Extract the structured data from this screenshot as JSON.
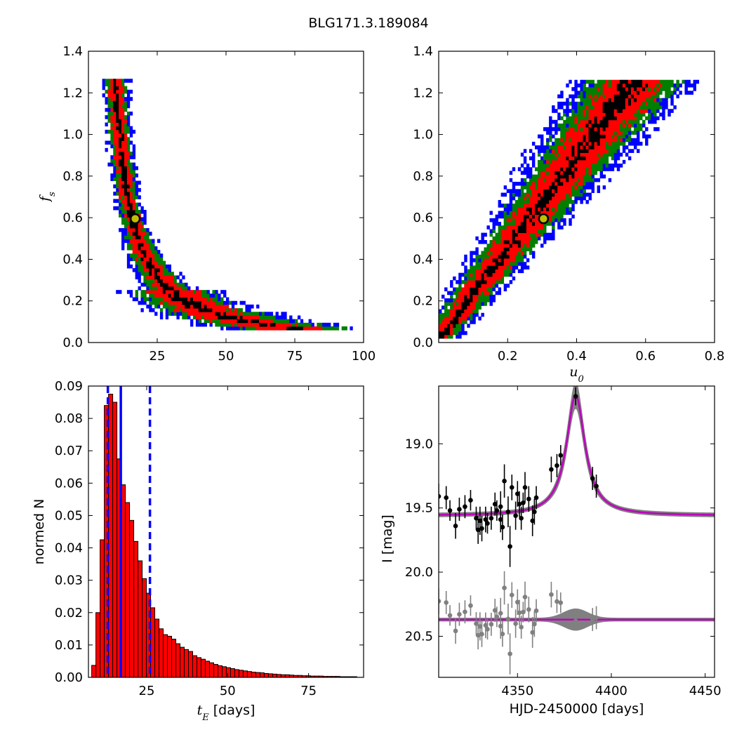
{
  "figure": {
    "title": "BLG171.3.189084"
  },
  "chart_data": [
    {
      "id": "p1",
      "type": "heatmap",
      "xlim": [
        0,
        100
      ],
      "ylim": [
        0,
        1.4
      ],
      "xticks": [
        25,
        50,
        75,
        100
      ],
      "xticklabels": [
        "25",
        "50",
        "75",
        "100"
      ],
      "yticks": [
        0.0,
        0.2,
        0.4,
        0.6,
        0.8,
        1.0,
        1.2,
        1.4
      ],
      "yticklabels": [
        "0.0",
        "0.2",
        "0.4",
        "0.6",
        "0.8",
        "1.0",
        "1.2",
        "1.4"
      ],
      "xlabel": "",
      "ylabel": "f_s",
      "ylabel_main": "f",
      "ylabel_sub": "s",
      "levels": [
        {
          "color": "#0000ff",
          "description": "outer"
        },
        {
          "color": "#007f00",
          "description": "middle"
        },
        {
          "color": "#ff0000",
          "description": "inner"
        },
        {
          "color": "#000000",
          "description": "core"
        }
      ],
      "best_fit": {
        "x": 17,
        "y": 0.595,
        "color": "#bfbf00"
      }
    },
    {
      "id": "p2",
      "type": "heatmap",
      "xlim": [
        0,
        0.8
      ],
      "ylim": [
        0,
        1.4
      ],
      "xticks": [
        0.2,
        0.4,
        0.6,
        0.8
      ],
      "xticklabels": [
        "0.2",
        "0.4",
        "0.6",
        "0.8"
      ],
      "yticks": [
        0.0,
        0.2,
        0.4,
        0.6,
        0.8,
        1.0,
        1.2,
        1.4
      ],
      "yticklabels": [
        "0.0",
        "0.2",
        "0.4",
        "0.6",
        "0.8",
        "1.0",
        "1.2",
        "1.4"
      ],
      "xlabel": "u_0",
      "xlabel_main": "u",
      "xlabel_sub": "0",
      "ylabel": "",
      "best_fit": {
        "x": 0.304,
        "y": 0.595,
        "color": "#bfbf00"
      }
    },
    {
      "id": "p3",
      "type": "bar",
      "xlim": [
        7,
        92
      ],
      "ylim": [
        0,
        0.09
      ],
      "xticks": [
        25,
        50,
        75
      ],
      "xticklabels": [
        "25",
        "50",
        "75"
      ],
      "yticks": [
        0.0,
        0.01,
        0.02,
        0.03,
        0.04,
        0.05,
        0.06,
        0.07,
        0.08,
        0.09
      ],
      "yticklabels": [
        "0.00",
        "0.01",
        "0.02",
        "0.03",
        "0.04",
        "0.05",
        "0.06",
        "0.07",
        "0.08",
        "0.09"
      ],
      "xlabel_main": "t",
      "xlabel_sub": "E",
      "xlabel_rest": " [days]",
      "ylabel": "normed N",
      "bin_width": 1.3,
      "bin_start": 8,
      "values": [
        0.0037,
        0.02,
        0.0425,
        0.084,
        0.0875,
        0.085,
        0.0675,
        0.0595,
        0.054,
        0.0485,
        0.042,
        0.036,
        0.0305,
        0.026,
        0.0215,
        0.018,
        0.015,
        0.0132,
        0.0127,
        0.0118,
        0.0104,
        0.0093,
        0.0086,
        0.008,
        0.0067,
        0.0061,
        0.0056,
        0.005,
        0.0045,
        0.004,
        0.0036,
        0.0033,
        0.003,
        0.0027,
        0.0024,
        0.0022,
        0.002,
        0.0018,
        0.0016,
        0.0015,
        0.0014,
        0.0012,
        0.0011,
        0.001,
        0.0009,
        0.0008,
        0.0008,
        0.0007,
        0.0006,
        0.0006,
        0.0005,
        0.0005,
        0.0004,
        0.0004,
        0.0004,
        0.0003,
        0.0003,
        0.0003,
        0.0003,
        0.0002,
        0.0002,
        0.0002,
        0.0002
      ],
      "bar_color": "#ff0000",
      "median": 17,
      "lower": 13,
      "upper": 26,
      "line_color": "#0000ff"
    },
    {
      "id": "p4",
      "type": "scatter",
      "xlim": [
        4308,
        4455
      ],
      "ylim": [
        20.82,
        18.55
      ],
      "xticks": [
        4350,
        4400,
        4450
      ],
      "xticklabels": [
        "4350",
        "4400",
        "4450"
      ],
      "yticks": [
        19.0,
        19.5,
        20.0,
        20.5
      ],
      "yticklabels": [
        "19.0",
        "19.5",
        "20.0",
        "20.5"
      ],
      "xlabel": "HJD-2450000 [days]",
      "ylabel": "I [mag]",
      "model": {
        "t0": 4381,
        "tau": 6.0,
        "base": 19.56,
        "peak": 18.62,
        "color": "#bf00bf",
        "band_color": "#808080"
      },
      "residual_offset": 20.37,
      "points": [
        {
          "t": 4308,
          "m": 19.41,
          "e": 0.1
        },
        {
          "t": 4312,
          "m": 19.42,
          "e": 0.09
        },
        {
          "t": 4314,
          "m": 19.52,
          "e": 0.08
        },
        {
          "t": 4317,
          "m": 19.64,
          "e": 0.1
        },
        {
          "t": 4319,
          "m": 19.51,
          "e": 0.09
        },
        {
          "t": 4322,
          "m": 19.49,
          "e": 0.09
        },
        {
          "t": 4325,
          "m": 19.44,
          "e": 0.08
        },
        {
          "t": 4328,
          "m": 19.58,
          "e": 0.09
        },
        {
          "t": 4329,
          "m": 19.67,
          "e": 0.11
        },
        {
          "t": 4330,
          "m": 19.6,
          "e": 0.11
        },
        {
          "t": 4331,
          "m": 19.66,
          "e": 0.1
        },
        {
          "t": 4333,
          "m": 19.59,
          "e": 0.1
        },
        {
          "t": 4334,
          "m": 19.62,
          "e": 0.08
        },
        {
          "t": 4336,
          "m": 19.58,
          "e": 0.09
        },
        {
          "t": 4338,
          "m": 19.47,
          "e": 0.09
        },
        {
          "t": 4339,
          "m": 19.52,
          "e": 0.08
        },
        {
          "t": 4341,
          "m": 19.49,
          "e": 0.12
        },
        {
          "t": 4341,
          "m": 19.59,
          "e": 0.1
        },
        {
          "t": 4342,
          "m": 19.65,
          "e": 0.1
        },
        {
          "t": 4343,
          "m": 19.29,
          "e": 0.13
        },
        {
          "t": 4345,
          "m": 19.53,
          "e": 0.12
        },
        {
          "t": 4346,
          "m": 19.8,
          "e": 0.16
        },
        {
          "t": 4347,
          "m": 19.34,
          "e": 0.1
        },
        {
          "t": 4349,
          "m": 19.56,
          "e": 0.11
        },
        {
          "t": 4350,
          "m": 19.39,
          "e": 0.1
        },
        {
          "t": 4351,
          "m": 19.47,
          "e": 0.1
        },
        {
          "t": 4352,
          "m": 19.58,
          "e": 0.09
        },
        {
          "t": 4353,
          "m": 19.46,
          "e": 0.08
        },
        {
          "t": 4354,
          "m": 19.34,
          "e": 0.12
        },
        {
          "t": 4356,
          "m": 19.43,
          "e": 0.1
        },
        {
          "t": 4358,
          "m": 19.6,
          "e": 0.12
        },
        {
          "t": 4359,
          "m": 19.53,
          "e": 0.1
        },
        {
          "t": 4360,
          "m": 19.42,
          "e": 0.09
        },
        {
          "t": 4368,
          "m": 19.2,
          "e": 0.1
        },
        {
          "t": 4371,
          "m": 19.17,
          "e": 0.09
        },
        {
          "t": 4373,
          "m": 19.09,
          "e": 0.08
        },
        {
          "t": 4381,
          "m": 18.63,
          "e": 0.07
        },
        {
          "t": 4390,
          "m": 19.27,
          "e": 0.09
        },
        {
          "t": 4392,
          "m": 19.33,
          "e": 0.09
        }
      ]
    }
  ]
}
